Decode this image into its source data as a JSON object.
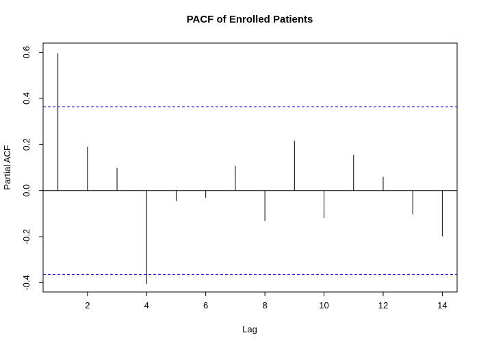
{
  "chart_data": {
    "type": "bar",
    "title": "PACF of Enrolled Patients",
    "xlabel": "Lag",
    "ylabel": "Partial ACF",
    "x": [
      1,
      2,
      3,
      4,
      5,
      6,
      7,
      8,
      9,
      10,
      11,
      12,
      13,
      14
    ],
    "values": [
      0.595,
      0.19,
      0.098,
      -0.405,
      -0.045,
      -0.032,
      0.107,
      -0.132,
      0.217,
      -0.12,
      0.155,
      0.06,
      -0.103,
      -0.198
    ],
    "confidence_bounds": [
      0.364,
      -0.364
    ],
    "xlim": [
      0.5,
      14.5
    ],
    "ylim": [
      -0.44,
      0.64
    ],
    "xticks": [
      2,
      4,
      6,
      8,
      10,
      12,
      14
    ],
    "xtick_labels": [
      "2",
      "4",
      "6",
      "8",
      "10",
      "12",
      "14"
    ],
    "yticks": [
      -0.4,
      -0.2,
      0.0,
      0.2,
      0.4,
      0.6
    ],
    "ytick_labels": [
      "-0.4",
      "-0.2",
      "0.0",
      "0.2",
      "0.4",
      "0.6"
    ],
    "grid": false,
    "colors": {
      "bars": "#000000",
      "bounds": "#0000ff",
      "zero_line": "#000000"
    }
  }
}
